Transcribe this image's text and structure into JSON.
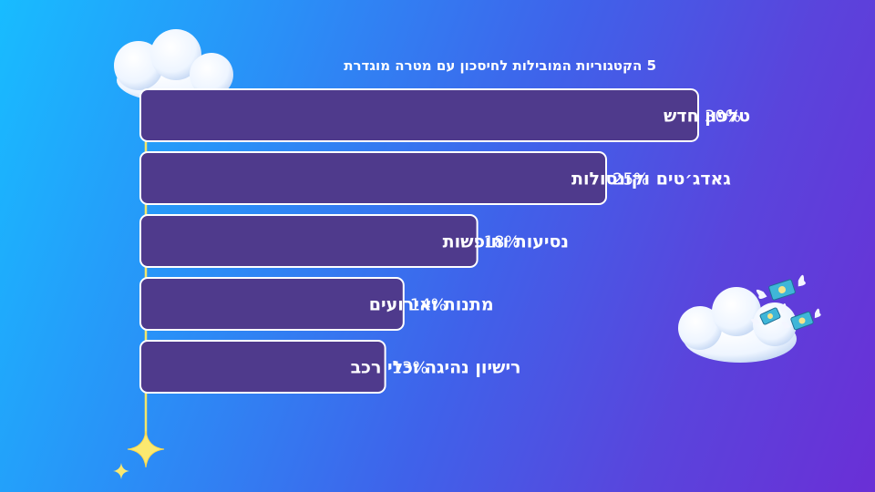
{
  "chart_data": {
    "type": "bar",
    "orientation": "horizontal",
    "title": "5 הקטגוריות המובילות לחיסכון עם מטרה מוגדרת",
    "categories": [
      "טלפון חדש",
      "גאדג׳טים וקונסולות",
      "נסיעות וחופשות",
      "מתנות ואירועים",
      "רישיון נהיגה וכלי רכב"
    ],
    "values": [
      30,
      25,
      18,
      14,
      13
    ],
    "value_labels": [
      "30%",
      "25%",
      "18%",
      "14%",
      "13%"
    ],
    "unit": "%",
    "xlim": [
      0,
      30
    ],
    "grid": false,
    "legend": "none"
  },
  "colors": {
    "bar_fill": "#4f3a8c",
    "bar_border": "#ffffff",
    "axis_line": "#f2e66a",
    "text": "#ffffff"
  },
  "decorations": [
    "cloud-icon",
    "cloud-icon",
    "flying-money-icon",
    "star-icon"
  ]
}
